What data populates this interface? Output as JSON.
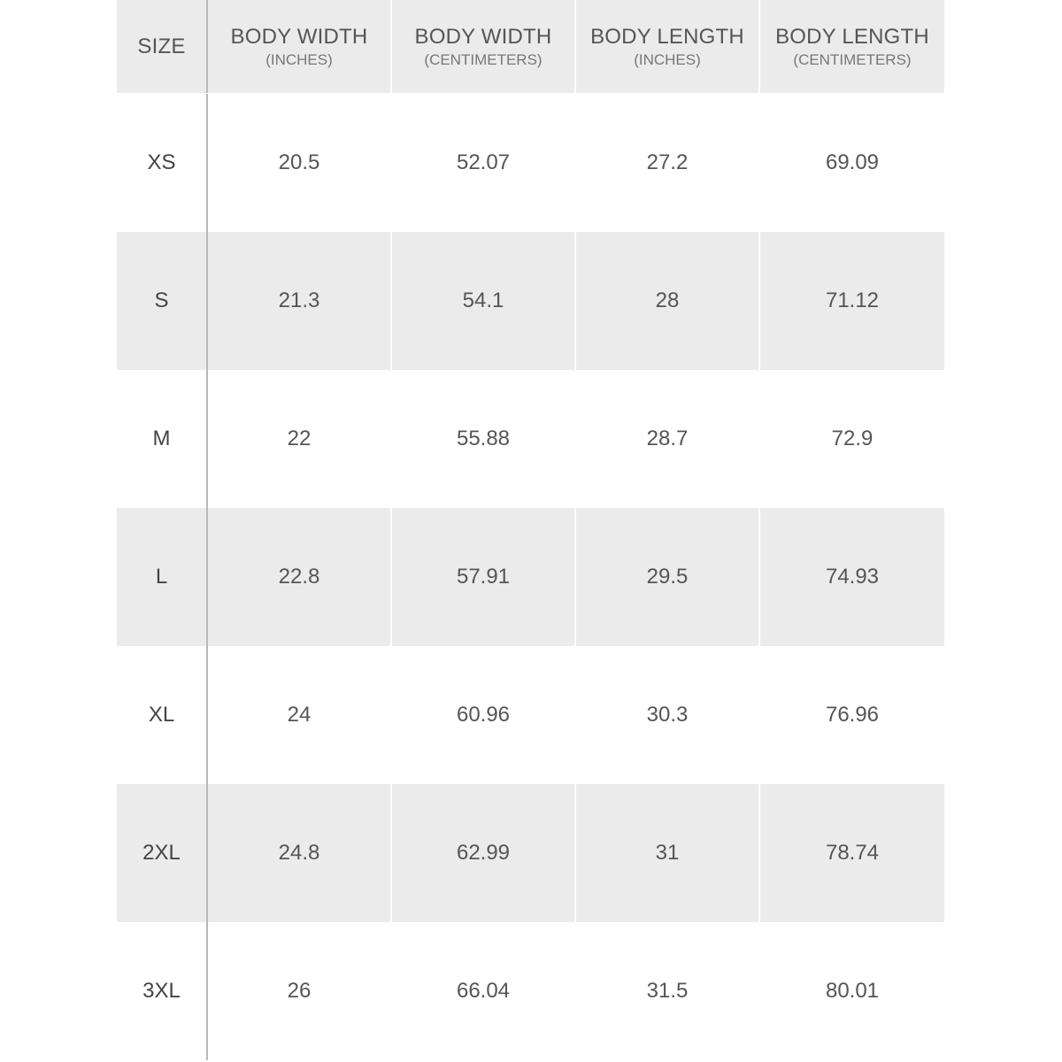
{
  "table": {
    "headers": [
      {
        "main": "SIZE",
        "sub": ""
      },
      {
        "main": "BODY WIDTH",
        "sub": "(INCHES)"
      },
      {
        "main": "BODY WIDTH",
        "sub": "(CENTIMETERS)"
      },
      {
        "main": "BODY LENGTH",
        "sub": "(INCHES)"
      },
      {
        "main": "BODY LENGTH",
        "sub": "(CENTIMETERS)"
      }
    ],
    "rows": [
      [
        "XS",
        "20.5",
        "52.07",
        "27.2",
        "69.09"
      ],
      [
        "S",
        "21.3",
        "54.1",
        "28",
        "71.12"
      ],
      [
        "M",
        "22",
        "55.88",
        "28.7",
        "72.9"
      ],
      [
        "L",
        "22.8",
        "57.91",
        "29.5",
        "74.93"
      ],
      [
        "XL",
        "24",
        "60.96",
        "30.3",
        "76.96"
      ],
      [
        "2XL",
        "24.8",
        "62.99",
        "31",
        "78.74"
      ],
      [
        "3XL",
        "26",
        "66.04",
        "31.5",
        "80.01"
      ]
    ]
  },
  "colors": {
    "stripe": "#ebebeb",
    "text": "#555555",
    "divider": "#b9b9b9"
  }
}
